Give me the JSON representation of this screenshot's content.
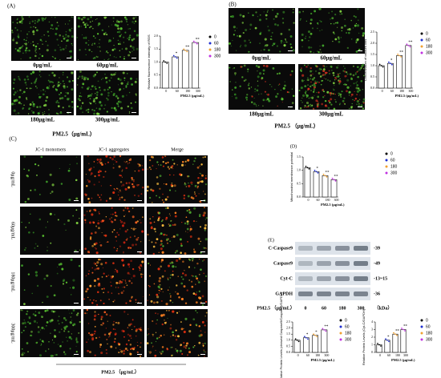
{
  "figure": {
    "panel_a": {
      "label": "(A)",
      "images": [
        "0μg/mL",
        "60μg/mL",
        "180μg/mL",
        "300μg/mL"
      ],
      "caption": "PM2.5（μg/mL）"
    },
    "panel_b": {
      "label": "(B)",
      "images": [
        "0μg/mL",
        "60μg/mL",
        "180μg/mL",
        "300μg/mL"
      ],
      "caption": "PM2.5 （μg/mL）"
    },
    "panel_c": {
      "label": "(C)",
      "columns": [
        "JC-1 monomers",
        "JC-1 aggregates",
        "Merge"
      ],
      "rows": [
        "0μg/mL",
        "60μg/mL",
        "180μg/mL",
        "300μg/mL"
      ],
      "caption": "PM2.5 （μg/mL）"
    },
    "panel_d": {
      "label": "(D)"
    },
    "panel_e": {
      "label": "(E)",
      "bands": [
        {
          "name": "C-Caspase9",
          "kda": "-39"
        },
        {
          "name": "Caspase9",
          "kda": "-49"
        },
        {
          "name": "Cyt-C",
          "kda": "-13~15"
        },
        {
          "name": "GAPDH",
          "kda": "-36"
        }
      ],
      "dose_label": "PM2.5 （μg/mL）",
      "doses": [
        "0",
        "60",
        "180",
        "300"
      ],
      "unit": "（kDa）"
    }
  },
  "chart_data": [
    {
      "type": "bar",
      "y_label": "Relative fluorescence intensity of ROS",
      "x_label": "PM2.5 (μg/mL)",
      "categories": [
        "0",
        "60",
        "180",
        "300"
      ],
      "colors": [
        "#000000",
        "#1f2fd0",
        "#f0a030",
        "#c030e0"
      ],
      "values": [
        1.0,
        1.2,
        1.45,
        1.75
      ],
      "significance": [
        null,
        "*",
        "**",
        "**"
      ],
      "ylim": [
        0,
        2
      ],
      "yticks": [
        {
          "value": 0,
          "label": "0.0"
        },
        0.5,
        {
          "value": 1,
          "label": "1.0"
        },
        1.5,
        {
          "value": 2,
          "label": "2.0"
        }
      ]
    },
    {
      "type": "bar",
      "y_label": "Concentration of calcium ions",
      "x_label": "PM2.5 (μg/mL)",
      "categories": [
        "0",
        "60",
        "180",
        "300"
      ],
      "colors": [
        "#000000",
        "#1f2fd0",
        "#f0a030",
        "#c030e0"
      ],
      "values": [
        1.0,
        1.1,
        1.45,
        1.9
      ],
      "significance": [
        null,
        "*",
        "**",
        "**"
      ],
      "ylim": [
        0,
        2.5
      ],
      "yticks": [
        {
          "value": 0,
          "label": "0.0"
        },
        0.5,
        {
          "value": 1,
          "label": "1.0"
        },
        1.5,
        {
          "value": 2,
          "label": "2.0"
        },
        2.5
      ]
    },
    {
      "type": "bar",
      "y_label": "Mitochondrial membrance potential",
      "x_label": "PM2.5 (μg/mL)",
      "categories": [
        "0",
        "60",
        "180",
        "300"
      ],
      "colors": [
        "#000000",
        "#1f2fd0",
        "#f0a030",
        "#c030e0"
      ],
      "values": [
        1.1,
        0.95,
        0.8,
        0.65
      ],
      "significance": [
        null,
        "*",
        "**",
        "**"
      ],
      "ylim": [
        0,
        1.5
      ],
      "yticks": [
        {
          "value": 0,
          "label": "0.0"
        },
        0.5,
        {
          "value": 1,
          "label": "1.0"
        },
        1.5
      ]
    },
    {
      "type": "bar",
      "y_label": "Relative Protein Levels (cleaved Caspase9/Caspase9/GAPDH)",
      "x_label": "PM2.5 (μg/mL)",
      "categories": [
        "0",
        "60",
        "180",
        "300"
      ],
      "colors": [
        "#000000",
        "#1f2fd0",
        "#f0a030",
        "#c030e0"
      ],
      "values": [
        1.0,
        1.2,
        1.4,
        1.85
      ],
      "significance": [
        null,
        "*",
        "*",
        "**"
      ],
      "ylim": [
        0,
        2.5
      ],
      "yticks": [
        {
          "value": 0,
          "label": "0.0"
        },
        0.5,
        {
          "value": 1,
          "label": "1.0"
        },
        1.5,
        {
          "value": 2,
          "label": "2.0"
        },
        2.5
      ]
    },
    {
      "type": "bar",
      "y_label": "Relative Protein Levels (Cyt-C/GAPDH)",
      "x_label": "PM2.5 (μg/mL)",
      "categories": [
        "0",
        "60",
        "180",
        "300"
      ],
      "colors": [
        "#000000",
        "#1f2fd0",
        "#f0a030",
        "#c030e0"
      ],
      "values": [
        1.0,
        1.6,
        2.4,
        3.0
      ],
      "significance": [
        null,
        "*",
        "**",
        "**"
      ],
      "ylim": [
        0,
        4
      ],
      "yticks": [
        0,
        1,
        2,
        3,
        4
      ]
    }
  ]
}
